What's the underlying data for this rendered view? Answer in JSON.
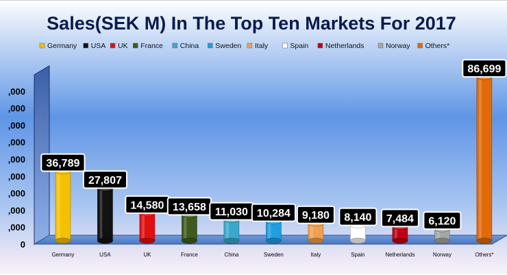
{
  "chart_data": {
    "type": "bar",
    "title": "Sales(SEK M) In The Top Ten Markets For 2017",
    "categories": [
      "Germany",
      "USA",
      "UK",
      "France",
      "China",
      "Sweden",
      "Italy",
      "Spain",
      "Netherlands",
      "Norway",
      "Others*"
    ],
    "values": [
      36789,
      27807,
      14580,
      13658,
      11030,
      10284,
      9180,
      8140,
      7484,
      6120,
      86699
    ],
    "data_labels": [
      "36,789",
      "27,807",
      "14,580",
      "13,658",
      "11,030",
      "10,284",
      "9,180",
      "8,140",
      "7,484",
      "6,120",
      "86,699"
    ],
    "colors": [
      "#f5c000",
      "#111111",
      "#e01010",
      "#3f5a1e",
      "#3aa8cc",
      "#1f9ee0",
      "#f0a050",
      "#ffffff",
      "#c00012",
      "#a6a6a6",
      "#e06a0a"
    ],
    "legend": [
      "Germany",
      "USA",
      "UK",
      "France",
      "China",
      "Sweden",
      "Italy",
      "Spain",
      "Netherlands",
      "Norway",
      "Others*"
    ],
    "legend_placement": "top",
    "y_tick_labels": [
      ",000",
      ",000",
      ",000",
      ",000",
      ",000",
      ",000",
      ",000",
      ",000",
      ",000",
      "0"
    ],
    "ylim": [
      0,
      90000
    ],
    "grid": false,
    "xlabel": "",
    "ylabel": ""
  }
}
